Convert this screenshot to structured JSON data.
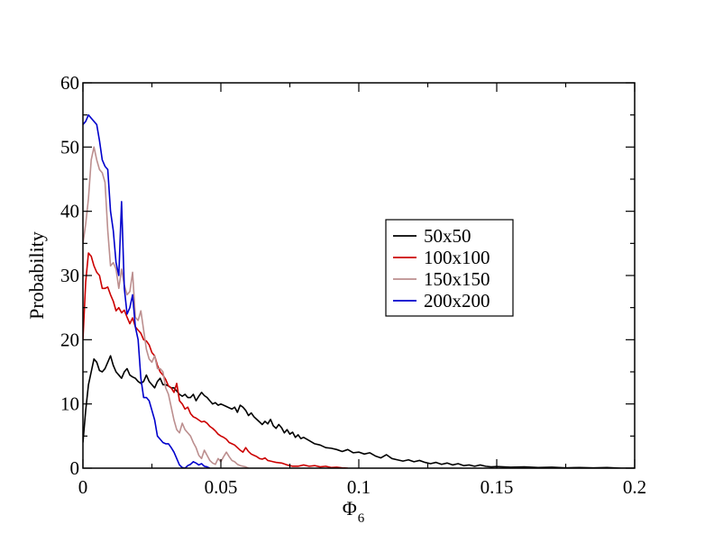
{
  "chart_data": {
    "type": "line",
    "xlabel": "Φ",
    "xlabel_subscript": "6",
    "ylabel": "Probability",
    "xlim": [
      0,
      0.2
    ],
    "ylim": [
      0,
      60
    ],
    "x_ticks": [
      0,
      0.05,
      0.1,
      0.15,
      0.2
    ],
    "x_tick_labels": [
      "0",
      "0.05",
      "0.1",
      "0.15",
      "0.2"
    ],
    "y_ticks": [
      0,
      10,
      20,
      30,
      40,
      50,
      60
    ],
    "y_tick_labels": [
      "0",
      "10",
      "20",
      "30",
      "40",
      "50",
      "60"
    ],
    "legend_position": "center-right",
    "grid": false,
    "series": [
      {
        "name": "50x50",
        "color": "#000000",
        "points": [
          [
            0,
            4
          ],
          [
            0.001,
            9
          ],
          [
            0.002,
            13
          ],
          [
            0.003,
            15
          ],
          [
            0.004,
            17
          ],
          [
            0.005,
            16.5
          ],
          [
            0.006,
            15.2
          ],
          [
            0.007,
            15
          ],
          [
            0.008,
            15.5
          ],
          [
            0.009,
            16.5
          ],
          [
            0.01,
            17.5
          ],
          [
            0.011,
            16
          ],
          [
            0.012,
            15
          ],
          [
            0.013,
            14.5
          ],
          [
            0.014,
            14
          ],
          [
            0.015,
            15
          ],
          [
            0.016,
            15.5
          ],
          [
            0.017,
            14.5
          ],
          [
            0.018,
            14.2
          ],
          [
            0.019,
            14
          ],
          [
            0.02,
            13.5
          ],
          [
            0.021,
            13.2
          ],
          [
            0.022,
            13.5
          ],
          [
            0.023,
            14.5
          ],
          [
            0.024,
            13.5
          ],
          [
            0.025,
            13
          ],
          [
            0.026,
            12.5
          ],
          [
            0.027,
            13.5
          ],
          [
            0.028,
            14
          ],
          [
            0.029,
            13
          ],
          [
            0.03,
            13
          ],
          [
            0.031,
            12.8
          ],
          [
            0.032,
            12.5
          ],
          [
            0.033,
            12.5
          ],
          [
            0.034,
            12
          ],
          [
            0.035,
            11.5
          ],
          [
            0.036,
            11.2
          ],
          [
            0.037,
            11.5
          ],
          [
            0.038,
            11
          ],
          [
            0.039,
            11
          ],
          [
            0.04,
            11.5
          ],
          [
            0.041,
            10.5
          ],
          [
            0.042,
            11.2
          ],
          [
            0.043,
            11.8
          ],
          [
            0.044,
            11.3
          ],
          [
            0.045,
            11
          ],
          [
            0.046,
            10.5
          ],
          [
            0.047,
            10
          ],
          [
            0.048,
            10.2
          ],
          [
            0.049,
            9.8
          ],
          [
            0.05,
            10
          ],
          [
            0.052,
            9.6
          ],
          [
            0.054,
            9.2
          ],
          [
            0.055,
            9.5
          ],
          [
            0.056,
            8.7
          ],
          [
            0.057,
            9.8
          ],
          [
            0.058,
            9.5
          ],
          [
            0.059,
            9
          ],
          [
            0.06,
            8.2
          ],
          [
            0.061,
            8.6
          ],
          [
            0.062,
            8
          ],
          [
            0.064,
            7.2
          ],
          [
            0.065,
            6.8
          ],
          [
            0.066,
            7.3
          ],
          [
            0.067,
            6.9
          ],
          [
            0.068,
            7.6
          ],
          [
            0.069,
            6.6
          ],
          [
            0.07,
            6.2
          ],
          [
            0.071,
            6.8
          ],
          [
            0.072,
            6.3
          ],
          [
            0.073,
            5.5
          ],
          [
            0.074,
            6
          ],
          [
            0.075,
            5.3
          ],
          [
            0.076,
            5.6
          ],
          [
            0.077,
            4.8
          ],
          [
            0.078,
            5.2
          ],
          [
            0.079,
            4.6
          ],
          [
            0.08,
            4.8
          ],
          [
            0.082,
            4.3
          ],
          [
            0.084,
            3.8
          ],
          [
            0.086,
            3.6
          ],
          [
            0.088,
            3.2
          ],
          [
            0.09,
            3.1
          ],
          [
            0.092,
            2.9
          ],
          [
            0.094,
            2.6
          ],
          [
            0.096,
            2.9
          ],
          [
            0.098,
            2.4
          ],
          [
            0.1,
            2.5
          ],
          [
            0.102,
            2.2
          ],
          [
            0.104,
            2.4
          ],
          [
            0.106,
            1.9
          ],
          [
            0.108,
            1.6
          ],
          [
            0.11,
            2.1
          ],
          [
            0.112,
            1.5
          ],
          [
            0.114,
            1.3
          ],
          [
            0.116,
            1.1
          ],
          [
            0.118,
            1.3
          ],
          [
            0.12,
            1.0
          ],
          [
            0.122,
            1.2
          ],
          [
            0.124,
            0.9
          ],
          [
            0.126,
            0.7
          ],
          [
            0.128,
            0.9
          ],
          [
            0.13,
            0.6
          ],
          [
            0.132,
            0.8
          ],
          [
            0.134,
            0.5
          ],
          [
            0.136,
            0.7
          ],
          [
            0.138,
            0.4
          ],
          [
            0.14,
            0.5
          ],
          [
            0.142,
            0.3
          ],
          [
            0.144,
            0.5
          ],
          [
            0.146,
            0.3
          ],
          [
            0.148,
            0.2
          ],
          [
            0.15,
            0.25
          ],
          [
            0.155,
            0.15
          ],
          [
            0.16,
            0.2
          ],
          [
            0.165,
            0.1
          ],
          [
            0.17,
            0.15
          ],
          [
            0.175,
            0.05
          ],
          [
            0.18,
            0.1
          ],
          [
            0.185,
            0.05
          ],
          [
            0.19,
            0.1
          ],
          [
            0.195,
            0
          ],
          [
            0.2,
            0
          ]
        ]
      },
      {
        "name": "100x100",
        "color": "#cc0000",
        "points": [
          [
            0,
            20
          ],
          [
            0.001,
            29
          ],
          [
            0.002,
            33.5
          ],
          [
            0.003,
            33
          ],
          [
            0.004,
            31.5
          ],
          [
            0.005,
            30.5
          ],
          [
            0.006,
            30
          ],
          [
            0.007,
            28
          ],
          [
            0.008,
            28
          ],
          [
            0.009,
            28.2
          ],
          [
            0.01,
            27
          ],
          [
            0.011,
            26
          ],
          [
            0.012,
            24.5
          ],
          [
            0.013,
            25
          ],
          [
            0.014,
            24.2
          ],
          [
            0.015,
            24.6
          ],
          [
            0.016,
            23.5
          ],
          [
            0.017,
            22.5
          ],
          [
            0.018,
            23.4
          ],
          [
            0.019,
            22
          ],
          [
            0.02,
            21.5
          ],
          [
            0.021,
            21
          ],
          [
            0.022,
            20
          ],
          [
            0.023,
            19.8
          ],
          [
            0.024,
            19.2
          ],
          [
            0.025,
            18
          ],
          [
            0.026,
            17.5
          ],
          [
            0.027,
            16
          ],
          [
            0.028,
            15
          ],
          [
            0.029,
            14.5
          ],
          [
            0.03,
            13.8
          ],
          [
            0.031,
            12.8
          ],
          [
            0.032,
            12.5
          ],
          [
            0.033,
            11.8
          ],
          [
            0.034,
            13.2
          ],
          [
            0.035,
            10.5
          ],
          [
            0.036,
            10
          ],
          [
            0.037,
            9.2
          ],
          [
            0.038,
            9.5
          ],
          [
            0.039,
            8.5
          ],
          [
            0.04,
            8
          ],
          [
            0.041,
            7.8
          ],
          [
            0.042,
            7.5
          ],
          [
            0.043,
            7.2
          ],
          [
            0.044,
            7.3
          ],
          [
            0.045,
            7
          ],
          [
            0.046,
            6.5
          ],
          [
            0.047,
            6.2
          ],
          [
            0.048,
            5.8
          ],
          [
            0.049,
            5.3
          ],
          [
            0.05,
            5
          ],
          [
            0.051,
            4.8
          ],
          [
            0.052,
            4.5
          ],
          [
            0.053,
            4
          ],
          [
            0.054,
            3.8
          ],
          [
            0.055,
            3.6
          ],
          [
            0.056,
            3.2
          ],
          [
            0.057,
            2.8
          ],
          [
            0.058,
            2.5
          ],
          [
            0.059,
            3.2
          ],
          [
            0.06,
            2.6
          ],
          [
            0.061,
            2.2
          ],
          [
            0.062,
            2
          ],
          [
            0.063,
            1.8
          ],
          [
            0.064,
            1.5
          ],
          [
            0.065,
            1.4
          ],
          [
            0.066,
            1.6
          ],
          [
            0.067,
            1.2
          ],
          [
            0.068,
            1.1
          ],
          [
            0.069,
            1.0
          ],
          [
            0.07,
            0.9
          ],
          [
            0.072,
            0.8
          ],
          [
            0.074,
            0.5
          ],
          [
            0.076,
            0.3
          ],
          [
            0.078,
            0.3
          ],
          [
            0.08,
            0.5
          ],
          [
            0.082,
            0.3
          ],
          [
            0.084,
            0.4
          ],
          [
            0.086,
            0.2
          ],
          [
            0.088,
            0.3
          ],
          [
            0.09,
            0.1
          ],
          [
            0.092,
            0.15
          ],
          [
            0.094,
            0.05
          ],
          [
            0.096,
            0
          ]
        ]
      },
      {
        "name": "150x150",
        "color": "#bc8f8f",
        "points": [
          [
            0,
            35
          ],
          [
            0.001,
            38
          ],
          [
            0.002,
            42
          ],
          [
            0.003,
            48
          ],
          [
            0.004,
            50
          ],
          [
            0.005,
            48
          ],
          [
            0.006,
            46.5
          ],
          [
            0.007,
            46
          ],
          [
            0.008,
            44.5
          ],
          [
            0.009,
            37
          ],
          [
            0.01,
            31.5
          ],
          [
            0.011,
            32
          ],
          [
            0.012,
            31
          ],
          [
            0.013,
            28
          ],
          [
            0.014,
            31
          ],
          [
            0.015,
            28.5
          ],
          [
            0.016,
            27
          ],
          [
            0.017,
            27.5
          ],
          [
            0.018,
            30.5
          ],
          [
            0.019,
            23.5
          ],
          [
            0.02,
            23
          ],
          [
            0.021,
            24.5
          ],
          [
            0.022,
            21.5
          ],
          [
            0.023,
            18.5
          ],
          [
            0.024,
            17
          ],
          [
            0.025,
            16.5
          ],
          [
            0.026,
            17.5
          ],
          [
            0.027,
            15.5
          ],
          [
            0.028,
            15.5
          ],
          [
            0.029,
            15
          ],
          [
            0.03,
            12.5
          ],
          [
            0.031,
            11.5
          ],
          [
            0.032,
            9.5
          ],
          [
            0.033,
            7.5
          ],
          [
            0.034,
            6
          ],
          [
            0.035,
            5.5
          ],
          [
            0.036,
            7
          ],
          [
            0.037,
            6
          ],
          [
            0.038,
            5.5
          ],
          [
            0.039,
            5
          ],
          [
            0.04,
            4
          ],
          [
            0.041,
            3.2
          ],
          [
            0.042,
            2
          ],
          [
            0.043,
            1.5
          ],
          [
            0.044,
            2.8
          ],
          [
            0.045,
            2
          ],
          [
            0.046,
            1.2
          ],
          [
            0.047,
            0.8
          ],
          [
            0.048,
            0.6
          ],
          [
            0.049,
            1.5
          ],
          [
            0.05,
            1
          ],
          [
            0.051,
            1.8
          ],
          [
            0.052,
            2.5
          ],
          [
            0.053,
            1.8
          ],
          [
            0.054,
            1.2
          ],
          [
            0.055,
            1
          ],
          [
            0.056,
            0.6
          ],
          [
            0.057,
            0.4
          ],
          [
            0.058,
            0.3
          ],
          [
            0.059,
            0.2
          ],
          [
            0.06,
            0
          ]
        ]
      },
      {
        "name": "200x200",
        "color": "#0000cc",
        "points": [
          [
            0,
            53.5
          ],
          [
            0.001,
            54
          ],
          [
            0.002,
            55
          ],
          [
            0.003,
            54.5
          ],
          [
            0.004,
            54
          ],
          [
            0.005,
            53.5
          ],
          [
            0.006,
            51
          ],
          [
            0.007,
            48
          ],
          [
            0.008,
            47
          ],
          [
            0.009,
            46.5
          ],
          [
            0.01,
            40
          ],
          [
            0.011,
            37
          ],
          [
            0.012,
            32
          ],
          [
            0.013,
            30
          ],
          [
            0.014,
            41.5
          ],
          [
            0.015,
            28
          ],
          [
            0.016,
            24
          ],
          [
            0.017,
            25
          ],
          [
            0.018,
            27
          ],
          [
            0.019,
            22
          ],
          [
            0.02,
            20
          ],
          [
            0.021,
            14
          ],
          [
            0.022,
            11
          ],
          [
            0.023,
            11
          ],
          [
            0.024,
            10.5
          ],
          [
            0.025,
            9
          ],
          [
            0.026,
            7.5
          ],
          [
            0.027,
            5
          ],
          [
            0.028,
            4.5
          ],
          [
            0.029,
            4
          ],
          [
            0.03,
            3.8
          ],
          [
            0.031,
            3.8
          ],
          [
            0.032,
            3.2
          ],
          [
            0.033,
            2.5
          ],
          [
            0.034,
            1.5
          ],
          [
            0.035,
            0.5
          ],
          [
            0.036,
            0.1
          ],
          [
            0.037,
            0
          ],
          [
            0.038,
            0.4
          ],
          [
            0.039,
            0.6
          ],
          [
            0.04,
            1
          ],
          [
            0.041,
            0.8
          ],
          [
            0.042,
            0.5
          ],
          [
            0.043,
            0.7
          ],
          [
            0.044,
            0.3
          ],
          [
            0.045,
            0.2
          ],
          [
            0.046,
            0
          ]
        ]
      }
    ]
  }
}
